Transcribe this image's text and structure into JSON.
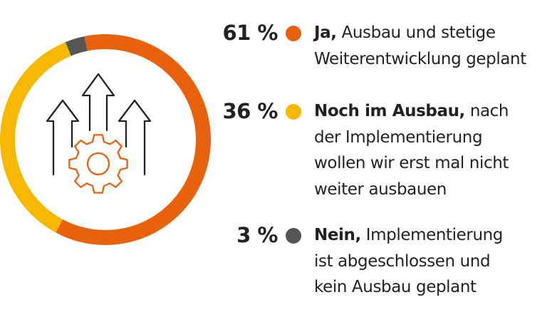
{
  "chart_data": {
    "type": "pie",
    "variant": "donut",
    "title": "",
    "center_icon": "gear-with-up-arrows-icon",
    "series": [
      {
        "value": 61,
        "label": "61 %",
        "color": "#E8620E",
        "bold_label": "Ja,",
        "text": "Ausbau und stetige Weiterentwicklung geplant",
        "lines": [
          "Ausbau und stetige",
          "Weiterentwicklung geplant"
        ]
      },
      {
        "value": 36,
        "label": "36 %",
        "color": "#F9B800",
        "bold_label": "Noch im Ausbau,",
        "text": "nach der Implementierung wollen wir erst mal nicht weiter ausbauen",
        "lines": [
          "nach",
          "der Implementierung",
          "wollen wir erst mal nicht",
          "weiter ausbauen"
        ]
      },
      {
        "value": 3,
        "label": "3 %",
        "color": "#555555",
        "bold_label": "Nein,",
        "text": "Implementierung ist abgeschlossen und kein Ausbau geplant",
        "lines": [
          "Implementierung",
          "ist abgeschlossen und",
          "kein Ausbau geplant"
        ]
      }
    ]
  },
  "colors": {
    "icon_stroke": "#222222",
    "gear": "#E8620E"
  }
}
